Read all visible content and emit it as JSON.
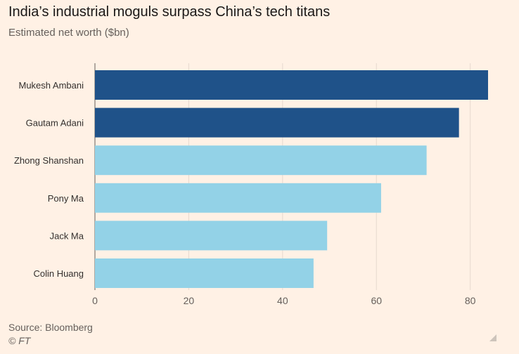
{
  "chart_data": {
    "type": "bar",
    "orientation": "horizontal",
    "title": "India’s industrial moguls surpass China’s tech titans",
    "subtitle": "Estimated net worth ($bn)",
    "categories": [
      "Mukesh Ambani",
      "Gautam Adani",
      "Zhong Shanshan",
      "Pony Ma",
      "Jack Ma",
      "Colin Huang"
    ],
    "values": [
      83.8,
      77.6,
      70.7,
      61.0,
      49.5,
      46.6
    ],
    "group": [
      "India",
      "India",
      "China",
      "China",
      "China",
      "China"
    ],
    "colors": {
      "India": "#1F5289",
      "China": "#93D2E7"
    },
    "xticks": [
      0,
      20,
      40,
      60,
      80
    ],
    "xlim": [
      0,
      83.8
    ],
    "grid": true
  },
  "footer": {
    "source": "Source: Bloomberg",
    "copyright": "© FT"
  },
  "icons": {
    "corner": "resize-corner-icon"
  }
}
